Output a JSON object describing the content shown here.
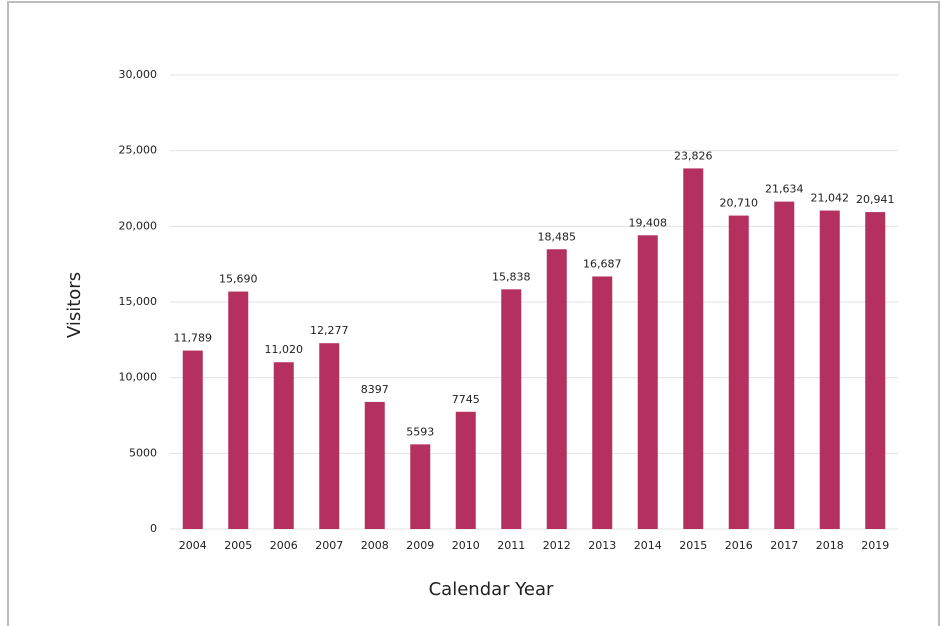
{
  "chart_data": {
    "type": "bar",
    "x_label": "Calendar Year",
    "y_label": "Visitors",
    "categories": [
      "2004",
      "2005",
      "2006",
      "2007",
      "2008",
      "2009",
      "2010",
      "2011",
      "2012",
      "2013",
      "2014",
      "2015",
      "2016",
      "2017",
      "2018",
      "2019"
    ],
    "values": [
      11789,
      15690,
      11020,
      12277,
      8397,
      5593,
      7745,
      15838,
      18485,
      16687,
      19408,
      23826,
      20710,
      21634,
      21042,
      20941
    ],
    "value_labels": [
      "11,789",
      "15,690",
      "11,020",
      "12,277",
      "8397",
      "5593",
      "7745",
      "15,838",
      "18,485",
      "16,687",
      "19,408",
      "23,826",
      "20,710",
      "21,634",
      "21,042",
      "20,941"
    ],
    "color": "#b3305f",
    "ylim": [
      0,
      30000
    ],
    "yticks": [
      0,
      5000,
      {
        "value": 10000,
        "label": "10,000"
      },
      {
        "value": 15000,
        "label": "15,000"
      },
      {
        "value": 20000,
        "label": "20,000"
      },
      {
        "value": 25000,
        "label": "25,000"
      },
      {
        "value": 30000,
        "label": "30,000"
      }
    ],
    "grid": true
  }
}
